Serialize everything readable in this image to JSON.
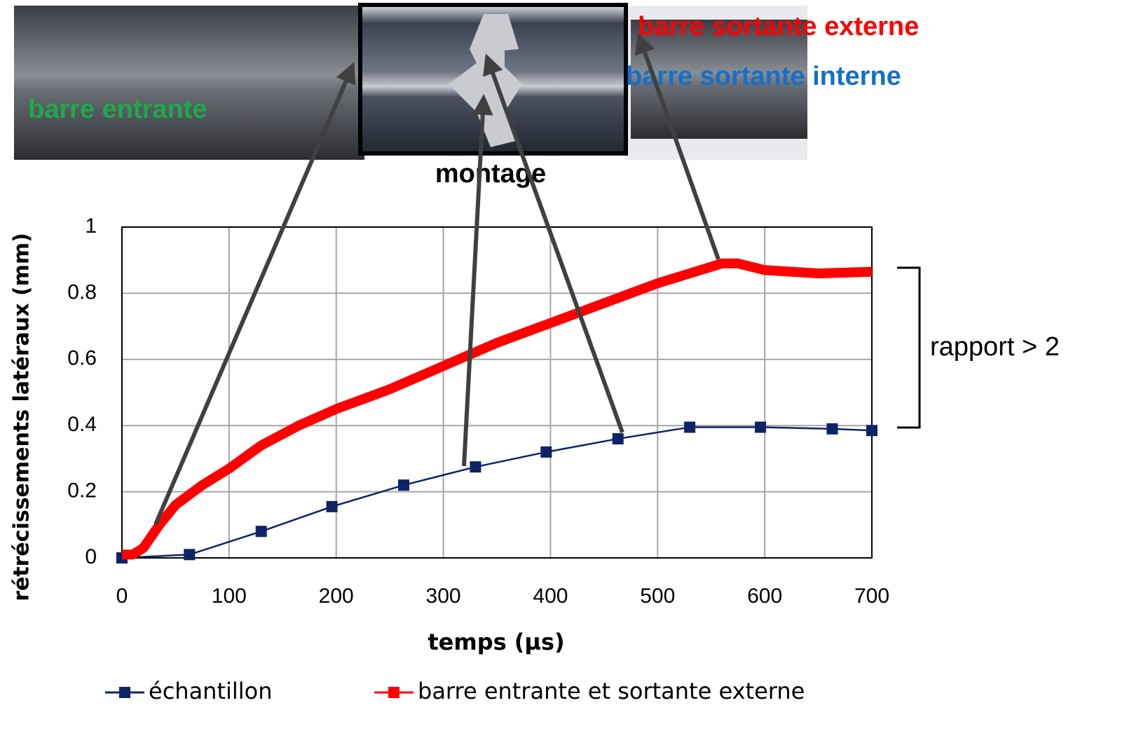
{
  "chart_data": {
    "type": "line",
    "x_label": "temps (µs)",
    "y_label": "rétrécissements latéraux (mm)",
    "xlim": [
      0,
      700
    ],
    "ylim": [
      0,
      1
    ],
    "xticks": [
      0,
      100,
      200,
      300,
      400,
      500,
      600,
      700
    ],
    "yticks": [
      0,
      0.2,
      0.4,
      0.6,
      0.8,
      1
    ],
    "grid": true,
    "series": [
      {
        "name": "échantillon",
        "color": "#0d2366",
        "x": [
          0,
          63,
          130,
          196,
          263,
          330,
          396,
          463,
          530,
          596,
          663,
          700
        ],
        "values": [
          0,
          0.01,
          0.08,
          0.155,
          0.22,
          0.275,
          0.32,
          0.36,
          0.395,
          0.395,
          0.39,
          0.385
        ]
      },
      {
        "name": "barre entrante et sortante externe",
        "color": "#ff0000",
        "x": [
          0,
          10,
          20,
          35,
          50,
          75,
          100,
          130,
          165,
          200,
          250,
          300,
          350,
          400,
          450,
          500,
          560,
          575,
          600,
          650,
          700
        ],
        "values": [
          0.01,
          0.01,
          0.03,
          0.1,
          0.16,
          0.22,
          0.27,
          0.34,
          0.4,
          0.45,
          0.51,
          0.58,
          0.65,
          0.71,
          0.77,
          0.83,
          0.89,
          0.89,
          0.87,
          0.86,
          0.865
        ]
      }
    ],
    "annotations": [
      "barre entrante",
      "barre sortante externe",
      "barre sortante interne",
      "montage",
      "rapport > 2"
    ]
  }
}
